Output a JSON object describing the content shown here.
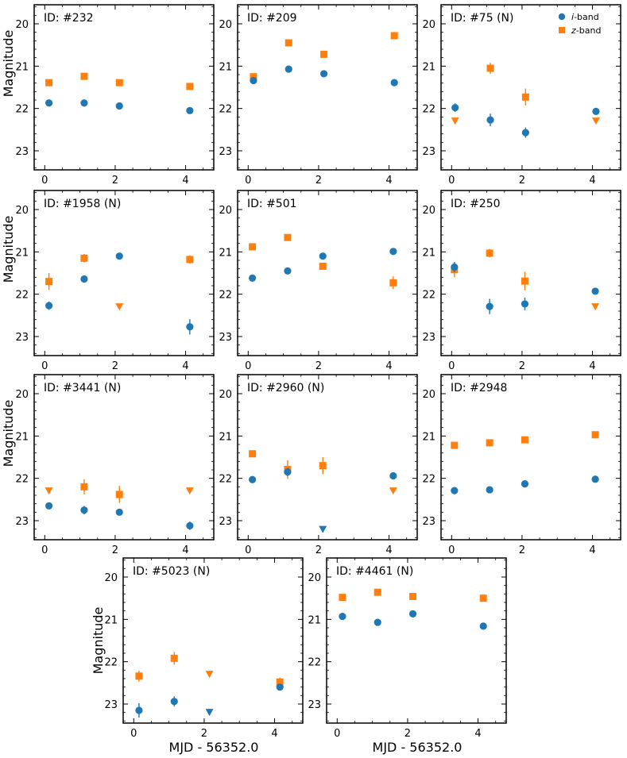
{
  "figure": {
    "xlabel": "MJD - 56352.0",
    "ylabel": "Magnitude",
    "xticks": [
      0,
      2,
      4
    ],
    "yticks": [
      20,
      21,
      22,
      23
    ],
    "xlim": [
      -0.3,
      4.8
    ],
    "ylim": [
      23.45,
      19.55
    ]
  },
  "legend": {
    "items": [
      {
        "band": "i",
        "suffix": "-band",
        "color": "#1f77b4",
        "marker": "circle"
      },
      {
        "band": "z",
        "suffix": "-band",
        "color": "#ff7f0e",
        "marker": "square"
      }
    ]
  },
  "colors": {
    "i": "#1f77b4",
    "z": "#ff7f0e"
  },
  "chart_data": [
    {
      "type": "scatter",
      "title": "ID: #232",
      "i": [
        {
          "x": 0.12,
          "y": 21.87
        },
        {
          "x": 1.12,
          "y": 21.87
        },
        {
          "x": 2.12,
          "y": 21.94
        },
        {
          "x": 4.12,
          "y": 22.05
        }
      ],
      "z": [
        {
          "x": 0.12,
          "y": 21.39
        },
        {
          "x": 1.12,
          "y": 21.24
        },
        {
          "x": 2.12,
          "y": 21.39
        },
        {
          "x": 4.12,
          "y": 21.48
        }
      ]
    },
    {
      "type": "scatter",
      "title": "ID: #209",
      "i": [
        {
          "x": 0.15,
          "y": 21.34
        },
        {
          "x": 1.15,
          "y": 21.07
        },
        {
          "x": 2.15,
          "y": 21.18
        },
        {
          "x": 4.15,
          "y": 21.39
        }
      ],
      "z": [
        {
          "x": 0.15,
          "y": 21.25
        },
        {
          "x": 1.15,
          "y": 20.45
        },
        {
          "x": 2.15,
          "y": 20.72
        },
        {
          "x": 4.15,
          "y": 20.28
        }
      ]
    },
    {
      "type": "scatter",
      "title": "ID: #75 (N)",
      "legend": true,
      "i": [
        {
          "x": 0.1,
          "y": 21.98,
          "err": 0.1
        },
        {
          "x": 1.1,
          "y": 22.27,
          "err": 0.15
        },
        {
          "x": 2.1,
          "y": 22.57,
          "err": 0.12
        },
        {
          "x": 4.1,
          "y": 22.07,
          "err": 0.07
        }
      ],
      "z": [
        {
          "x": 1.1,
          "y": 21.05,
          "err": 0.13
        },
        {
          "x": 2.1,
          "y": 21.73,
          "err": 0.2
        }
      ],
      "z_upper": [
        {
          "x": 0.1,
          "y": 22.29
        },
        {
          "x": 4.1,
          "y": 22.29
        }
      ]
    },
    {
      "type": "scatter",
      "title": "ID: #1958 (N)",
      "i": [
        {
          "x": 0.12,
          "y": 22.27,
          "err": 0.1
        },
        {
          "x": 1.12,
          "y": 21.64
        },
        {
          "x": 2.12,
          "y": 21.1
        },
        {
          "x": 4.12,
          "y": 22.77,
          "err": 0.18
        }
      ],
      "z": [
        {
          "x": 0.12,
          "y": 21.7,
          "err": 0.2
        },
        {
          "x": 1.12,
          "y": 21.15,
          "err": 0.1
        },
        {
          "x": 4.12,
          "y": 21.18,
          "err": 0.1
        }
      ],
      "z_upper": [
        {
          "x": 2.12,
          "y": 22.29
        }
      ]
    },
    {
      "type": "scatter",
      "title": "ID: #501",
      "i": [
        {
          "x": 0.12,
          "y": 21.62
        },
        {
          "x": 1.12,
          "y": 21.45
        },
        {
          "x": 2.12,
          "y": 21.1
        },
        {
          "x": 4.12,
          "y": 20.99
        }
      ],
      "z": [
        {
          "x": 0.12,
          "y": 20.88
        },
        {
          "x": 1.12,
          "y": 20.66
        },
        {
          "x": 2.12,
          "y": 21.34
        },
        {
          "x": 4.12,
          "y": 21.73,
          "err": 0.15
        }
      ]
    },
    {
      "type": "scatter",
      "title": "ID: #250",
      "i": [
        {
          "x": 0.08,
          "y": 21.36,
          "err": 0.12
        },
        {
          "x": 1.08,
          "y": 22.29,
          "err": 0.18
        },
        {
          "x": 2.08,
          "y": 22.23,
          "err": 0.15
        },
        {
          "x": 4.08,
          "y": 21.93
        }
      ],
      "z": [
        {
          "x": 0.08,
          "y": 21.42,
          "err": 0.18
        },
        {
          "x": 1.08,
          "y": 21.03,
          "err": 0.1
        },
        {
          "x": 2.08,
          "y": 21.69,
          "err": 0.22
        }
      ],
      "z_upper": [
        {
          "x": 4.08,
          "y": 22.29
        }
      ]
    },
    {
      "type": "scatter",
      "title": "ID: #3441 (N)",
      "i": [
        {
          "x": 0.12,
          "y": 22.65,
          "err": 0.08
        },
        {
          "x": 1.12,
          "y": 22.75,
          "err": 0.1
        },
        {
          "x": 2.12,
          "y": 22.8,
          "err": 0.07
        },
        {
          "x": 4.12,
          "y": 23.12,
          "err": 0.1
        }
      ],
      "z": [
        {
          "x": 1.12,
          "y": 22.2,
          "err": 0.18
        },
        {
          "x": 2.12,
          "y": 22.38,
          "err": 0.2
        }
      ],
      "z_upper": [
        {
          "x": 0.12,
          "y": 22.29
        },
        {
          "x": 4.12,
          "y": 22.29
        }
      ]
    },
    {
      "type": "scatter",
      "title": "ID: #2960 (N)",
      "i": [
        {
          "x": 0.12,
          "y": 22.03
        },
        {
          "x": 1.12,
          "y": 21.85,
          "err": 0.1
        },
        {
          "x": 4.12,
          "y": 21.94
        }
      ],
      "i_upper": [
        {
          "x": 2.12,
          "y": 23.2
        }
      ],
      "z": [
        {
          "x": 0.12,
          "y": 21.42,
          "err": 0.08
        },
        {
          "x": 1.12,
          "y": 21.79,
          "err": 0.22
        },
        {
          "x": 2.12,
          "y": 21.7,
          "err": 0.2
        }
      ],
      "z_upper": [
        {
          "x": 4.12,
          "y": 22.29
        }
      ]
    },
    {
      "type": "scatter",
      "title": "ID: #2948",
      "i": [
        {
          "x": 0.08,
          "y": 22.29,
          "err": 0.07
        },
        {
          "x": 1.08,
          "y": 22.27,
          "err": 0.07
        },
        {
          "x": 2.08,
          "y": 22.13
        },
        {
          "x": 4.08,
          "y": 22.02
        }
      ],
      "z": [
        {
          "x": 0.08,
          "y": 21.22
        },
        {
          "x": 1.08,
          "y": 21.16
        },
        {
          "x": 2.08,
          "y": 21.09
        },
        {
          "x": 4.08,
          "y": 20.97
        }
      ]
    },
    {
      "type": "scatter",
      "title": "ID: #5023 (N)",
      "i": [
        {
          "x": 0.15,
          "y": 23.15,
          "err": 0.17
        },
        {
          "x": 1.15,
          "y": 22.94,
          "err": 0.12
        },
        {
          "x": 4.15,
          "y": 22.6
        }
      ],
      "i_upper": [
        {
          "x": 2.15,
          "y": 23.19
        }
      ],
      "z": [
        {
          "x": 0.15,
          "y": 22.34,
          "err": 0.13
        },
        {
          "x": 1.15,
          "y": 21.92,
          "err": 0.15
        },
        {
          "x": 4.15,
          "y": 22.48,
          "err": 0.1
        }
      ],
      "z_upper": [
        {
          "x": 2.15,
          "y": 22.29
        }
      ]
    },
    {
      "type": "scatter",
      "title": "ID: #4461 (N)",
      "i": [
        {
          "x": 0.15,
          "y": 20.93
        },
        {
          "x": 1.15,
          "y": 21.07
        },
        {
          "x": 2.15,
          "y": 20.87
        },
        {
          "x": 4.15,
          "y": 21.16
        }
      ],
      "z": [
        {
          "x": 0.15,
          "y": 20.48
        },
        {
          "x": 1.15,
          "y": 20.36
        },
        {
          "x": 2.15,
          "y": 20.46
        },
        {
          "x": 4.15,
          "y": 20.5
        }
      ]
    }
  ]
}
